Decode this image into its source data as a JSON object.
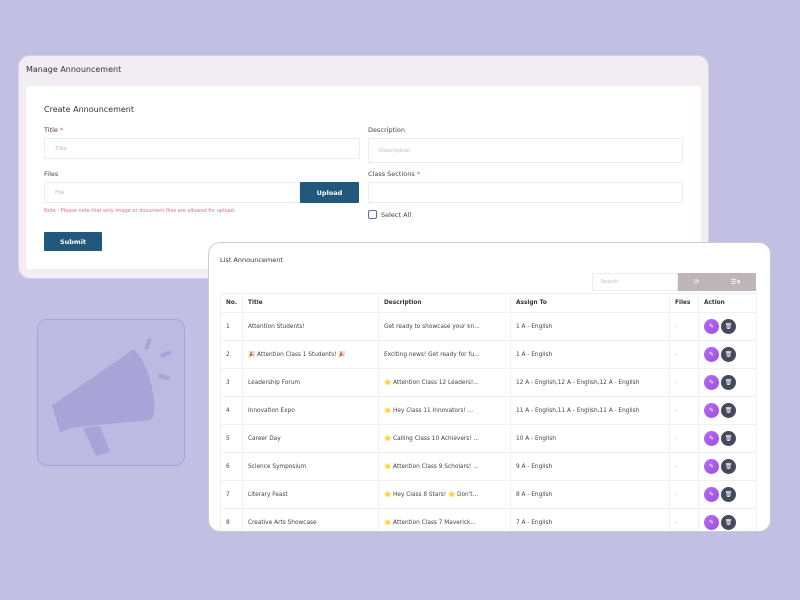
{
  "manage": {
    "title": "Manage Announcement",
    "form_title": "Create Announcement",
    "title_label": "Title",
    "title_placeholder": "Title",
    "required_mark": "*",
    "description_label": "Description",
    "description_placeholder": "Description",
    "files_label": "Files",
    "file_placeholder": "File",
    "upload_label": "Upload",
    "note": "Note : Please note that only image or document files are allowed for upload.",
    "class_sections_label": "Class Sections",
    "select_all_label": "Select All",
    "submit_label": "Submit"
  },
  "list": {
    "title": "List Announcement",
    "search_placeholder": "Search",
    "refresh_icon": "refresh-icon",
    "columns_icon": "list-columns-icon",
    "headers": [
      "No.",
      "Title",
      "Description",
      "Assign To",
      "Files",
      "Action"
    ],
    "rows": [
      {
        "no": "1",
        "title": "Attention Students!",
        "description": "Get ready to showcase your kn...",
        "assign": "1 A - English",
        "files": "-"
      },
      {
        "no": "2",
        "title": "🎉 Attention Class 1 Students! 🎉",
        "description": "Exciting news! Get ready for fu...",
        "assign": "1 A - English",
        "files": "-"
      },
      {
        "no": "3",
        "title": "Leadership Forum",
        "description": "🌟 Attention Class 12 Leaders!...",
        "assign": "12 A - English,12 A - English,12 A - English",
        "files": "-"
      },
      {
        "no": "4",
        "title": "Innovation Expo",
        "description": "🌟 Hey Class 11 Innovators! ...",
        "assign": "11 A - English,11 A - English,11 A - English",
        "files": "-"
      },
      {
        "no": "5",
        "title": "Career Day",
        "description": "🌟 Calling Class 10 Achievers! ...",
        "assign": "10 A - English",
        "files": "-"
      },
      {
        "no": "6",
        "title": "Science Symposium",
        "description": "🌟 Attention Class 9 Scholars! ...",
        "assign": "9 A - English",
        "files": "-"
      },
      {
        "no": "7",
        "title": "Literary Feast",
        "description": "🌟 Hey Class 8 Stars! 🌟 Don't...",
        "assign": "8 A - English",
        "files": "-"
      },
      {
        "no": "8",
        "title": "Creative Arts Showcase",
        "description": "🌟 Attention Class 7 Maverick...",
        "assign": "7 A - English",
        "files": "-"
      }
    ]
  },
  "colors": {
    "background": "#c2bfe4",
    "primary_button": "#21587c",
    "edit_button": "#b66cf2",
    "delete_button": "#434a5b",
    "note": "#e96b84"
  }
}
